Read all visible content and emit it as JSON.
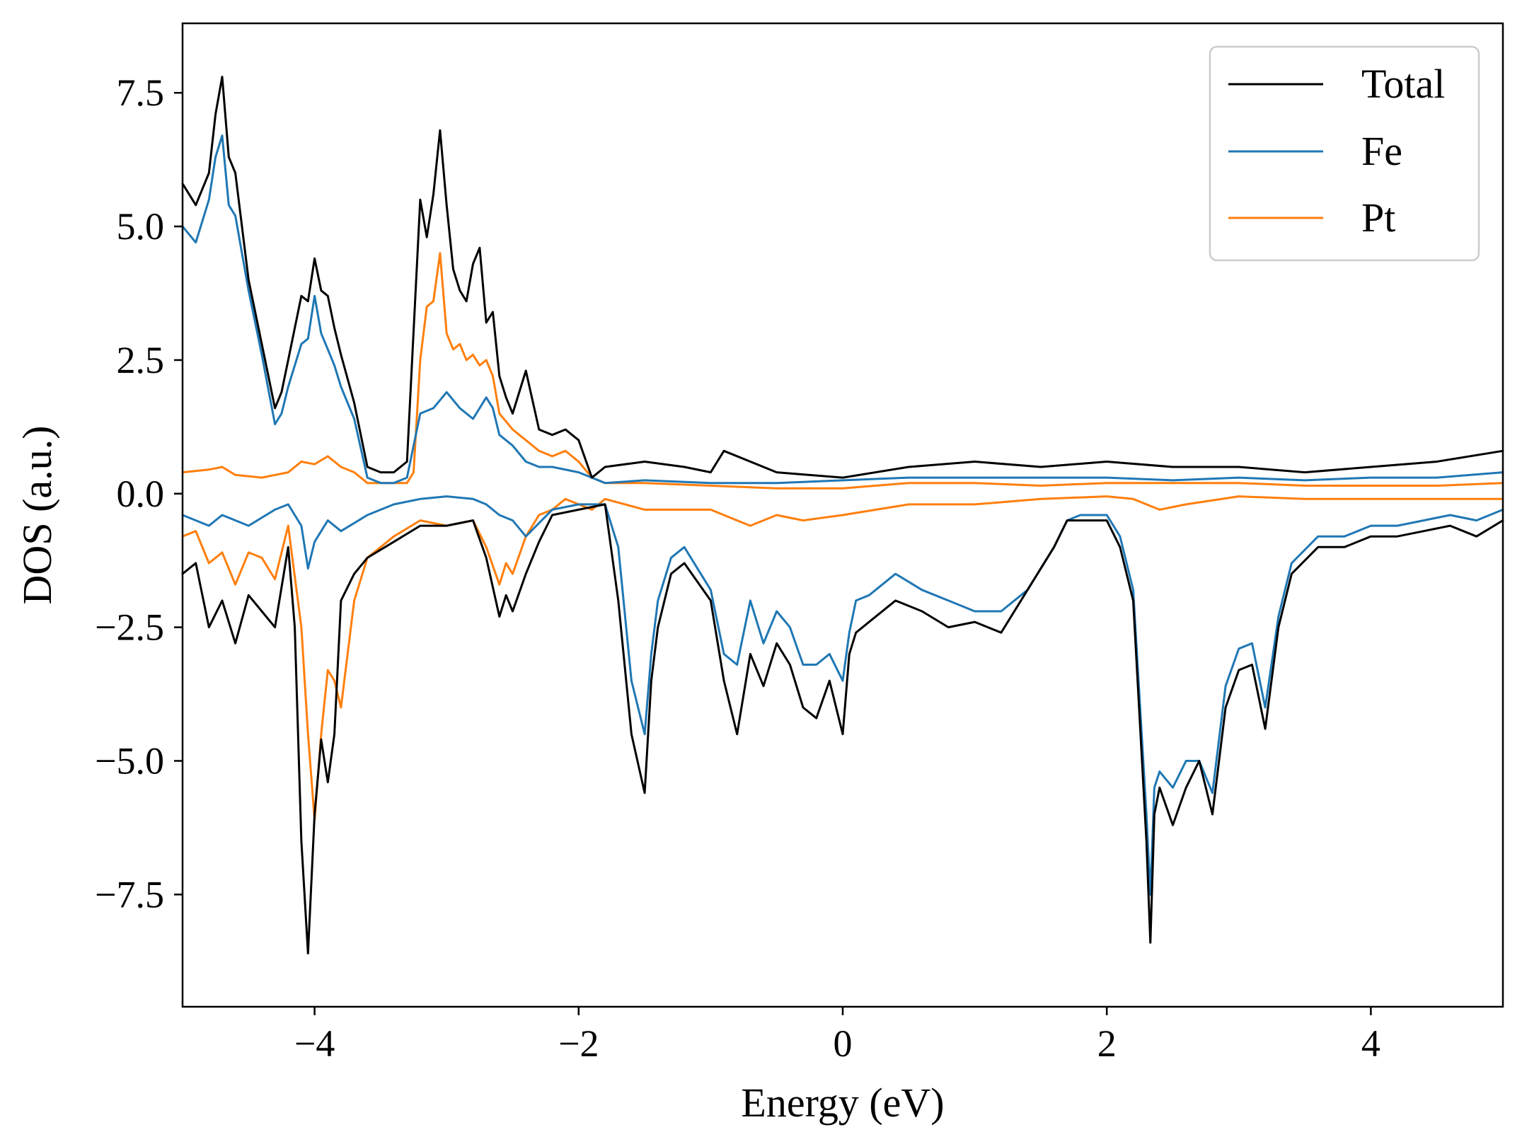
{
  "chart_data": {
    "type": "line",
    "title": "",
    "xlabel": "Energy (eV)",
    "ylabel": "DOS (a.u.)",
    "xlim": [
      -5,
      5
    ],
    "ylim": [
      -9.6,
      8.8
    ],
    "x_ticks": [
      -4,
      -2,
      0,
      2,
      4
    ],
    "x_tick_labels": [
      "−4",
      "−2",
      "0",
      "2",
      "4"
    ],
    "y_ticks": [
      7.5,
      5.0,
      2.5,
      0.0,
      -2.5,
      -5.0,
      -7.5
    ],
    "y_tick_labels": [
      "7.5",
      "5.0",
      "2.5",
      "0.0",
      "−2.5",
      "−5.0",
      "−7.5"
    ],
    "grid": false,
    "legend_position": "top-right",
    "series": [
      {
        "name": "Total",
        "color": "#000000",
        "up": {
          "x": [
            -5.0,
            -4.9,
            -4.8,
            -4.75,
            -4.7,
            -4.65,
            -4.6,
            -4.5,
            -4.4,
            -4.3,
            -4.25,
            -4.2,
            -4.1,
            -4.05,
            -4.0,
            -3.95,
            -3.9,
            -3.85,
            -3.8,
            -3.7,
            -3.6,
            -3.5,
            -3.4,
            -3.3,
            -3.2,
            -3.15,
            -3.1,
            -3.05,
            -3.0,
            -2.95,
            -2.9,
            -2.85,
            -2.8,
            -2.75,
            -2.7,
            -2.65,
            -2.6,
            -2.55,
            -2.5,
            -2.4,
            -2.3,
            -2.2,
            -2.1,
            -2.0,
            -1.9,
            -1.8,
            -1.5,
            -1.2,
            -1.0,
            -0.9,
            -0.5,
            0.0,
            0.5,
            1.0,
            1.5,
            2.0,
            2.5,
            3.0,
            3.5,
            4.0,
            4.5,
            5.0
          ],
          "y": [
            5.8,
            5.4,
            6.0,
            7.1,
            7.8,
            6.3,
            6.0,
            4.0,
            2.8,
            1.6,
            1.9,
            2.5,
            3.7,
            3.6,
            4.4,
            3.8,
            3.7,
            3.1,
            2.6,
            1.7,
            0.5,
            0.4,
            0.4,
            0.6,
            5.5,
            4.8,
            5.6,
            6.8,
            5.4,
            4.2,
            3.8,
            3.6,
            4.3,
            4.6,
            3.2,
            3.4,
            2.2,
            1.8,
            1.5,
            2.3,
            1.2,
            1.1,
            1.2,
            1.0,
            0.3,
            0.5,
            0.6,
            0.5,
            0.4,
            0.8,
            0.4,
            0.3,
            0.5,
            0.6,
            0.5,
            0.6,
            0.5,
            0.5,
            0.4,
            0.5,
            0.6,
            0.8
          ]
        },
        "down": {
          "x": [
            -5.0,
            -4.9,
            -4.8,
            -4.7,
            -4.6,
            -4.5,
            -4.4,
            -4.3,
            -4.2,
            -4.15,
            -4.1,
            -4.05,
            -4.0,
            -3.95,
            -3.9,
            -3.85,
            -3.8,
            -3.7,
            -3.6,
            -3.4,
            -3.2,
            -3.0,
            -2.8,
            -2.7,
            -2.6,
            -2.55,
            -2.5,
            -2.4,
            -2.3,
            -2.2,
            -2.0,
            -1.8,
            -1.7,
            -1.6,
            -1.5,
            -1.45,
            -1.4,
            -1.3,
            -1.2,
            -1.0,
            -0.9,
            -0.8,
            -0.7,
            -0.6,
            -0.5,
            -0.4,
            -0.3,
            -0.2,
            -0.1,
            0.0,
            0.05,
            0.1,
            0.2,
            0.4,
            0.6,
            0.8,
            1.0,
            1.2,
            1.4,
            1.6,
            1.7,
            1.8,
            2.0,
            2.1,
            2.2,
            2.3,
            2.33,
            2.36,
            2.4,
            2.5,
            2.6,
            2.7,
            2.8,
            2.9,
            3.0,
            3.1,
            3.2,
            3.3,
            3.4,
            3.6,
            3.8,
            4.0,
            4.2,
            4.4,
            4.6,
            4.8,
            5.0
          ],
          "y": [
            -1.5,
            -1.3,
            -2.5,
            -2.0,
            -2.8,
            -1.9,
            -2.2,
            -2.5,
            -1.0,
            -2.5,
            -6.5,
            -8.6,
            -6.0,
            -4.6,
            -5.4,
            -4.5,
            -2.0,
            -1.5,
            -1.2,
            -0.9,
            -0.6,
            -0.6,
            -0.5,
            -1.2,
            -2.3,
            -1.9,
            -2.2,
            -1.5,
            -0.9,
            -0.4,
            -0.3,
            -0.2,
            -2.0,
            -4.5,
            -5.6,
            -3.5,
            -2.5,
            -1.5,
            -1.3,
            -2.0,
            -3.5,
            -4.5,
            -3.0,
            -3.6,
            -2.8,
            -3.2,
            -4.0,
            -4.2,
            -3.5,
            -4.5,
            -3.0,
            -2.6,
            -2.4,
            -2.0,
            -2.2,
            -2.5,
            -2.4,
            -2.6,
            -1.8,
            -1.0,
            -0.5,
            -0.5,
            -0.5,
            -1.0,
            -2.0,
            -6.5,
            -8.4,
            -6.0,
            -5.5,
            -6.2,
            -5.5,
            -5.0,
            -6.0,
            -4.0,
            -3.3,
            -3.2,
            -4.4,
            -2.5,
            -1.5,
            -1.0,
            -1.0,
            -0.8,
            -0.8,
            -0.7,
            -0.6,
            -0.8,
            -0.5
          ]
        }
      },
      {
        "name": "Fe",
        "color": "#1f77b4",
        "up": {
          "x": [
            -5.0,
            -4.9,
            -4.8,
            -4.75,
            -4.7,
            -4.65,
            -4.6,
            -4.5,
            -4.4,
            -4.3,
            -4.25,
            -4.2,
            -4.1,
            -4.05,
            -4.0,
            -3.95,
            -3.9,
            -3.85,
            -3.8,
            -3.7,
            -3.6,
            -3.5,
            -3.4,
            -3.3,
            -3.2,
            -3.1,
            -3.0,
            -2.9,
            -2.8,
            -2.7,
            -2.65,
            -2.6,
            -2.5,
            -2.4,
            -2.3,
            -2.2,
            -2.0,
            -1.8,
            -1.5,
            -1.0,
            -0.5,
            0.0,
            0.5,
            1.0,
            1.5,
            2.0,
            2.5,
            3.0,
            3.5,
            4.0,
            4.5,
            5.0
          ],
          "y": [
            5.0,
            4.7,
            5.5,
            6.3,
            6.7,
            5.4,
            5.2,
            3.8,
            2.6,
            1.3,
            1.5,
            2.0,
            2.8,
            2.9,
            3.7,
            3.0,
            2.7,
            2.4,
            2.0,
            1.4,
            0.3,
            0.2,
            0.2,
            0.3,
            1.5,
            1.6,
            1.9,
            1.6,
            1.4,
            1.8,
            1.6,
            1.1,
            0.9,
            0.6,
            0.5,
            0.5,
            0.4,
            0.2,
            0.25,
            0.2,
            0.2,
            0.25,
            0.3,
            0.3,
            0.3,
            0.3,
            0.25,
            0.3,
            0.25,
            0.3,
            0.3,
            0.4
          ]
        },
        "down": {
          "x": [
            -5.0,
            -4.8,
            -4.7,
            -4.5,
            -4.3,
            -4.2,
            -4.1,
            -4.05,
            -4.0,
            -3.9,
            -3.8,
            -3.6,
            -3.4,
            -3.2,
            -3.0,
            -2.8,
            -2.7,
            -2.6,
            -2.5,
            -2.4,
            -2.2,
            -2.0,
            -1.8,
            -1.7,
            -1.6,
            -1.5,
            -1.45,
            -1.4,
            -1.3,
            -1.2,
            -1.0,
            -0.9,
            -0.8,
            -0.7,
            -0.6,
            -0.5,
            -0.4,
            -0.3,
            -0.2,
            -0.1,
            0.0,
            0.05,
            0.1,
            0.2,
            0.4,
            0.6,
            0.8,
            1.0,
            1.2,
            1.4,
            1.6,
            1.7,
            1.8,
            2.0,
            2.1,
            2.2,
            2.3,
            2.33,
            2.36,
            2.4,
            2.5,
            2.6,
            2.7,
            2.8,
            2.9,
            3.0,
            3.1,
            3.2,
            3.3,
            3.4,
            3.6,
            3.8,
            4.0,
            4.2,
            4.4,
            4.6,
            4.8,
            5.0
          ],
          "y": [
            -0.4,
            -0.6,
            -0.4,
            -0.6,
            -0.3,
            -0.2,
            -0.6,
            -1.4,
            -0.9,
            -0.5,
            -0.7,
            -0.4,
            -0.2,
            -0.1,
            -0.05,
            -0.1,
            -0.2,
            -0.4,
            -0.5,
            -0.8,
            -0.3,
            -0.2,
            -0.2,
            -1.0,
            -3.5,
            -4.5,
            -3.0,
            -2.0,
            -1.2,
            -1.0,
            -1.8,
            -3.0,
            -3.2,
            -2.0,
            -2.8,
            -2.2,
            -2.5,
            -3.2,
            -3.2,
            -3.0,
            -3.5,
            -2.6,
            -2.0,
            -1.9,
            -1.5,
            -1.8,
            -2.0,
            -2.2,
            -2.2,
            -1.8,
            -1.0,
            -0.5,
            -0.4,
            -0.4,
            -0.8,
            -1.8,
            -6.0,
            -7.5,
            -5.5,
            -5.2,
            -5.5,
            -5.0,
            -5.0,
            -5.6,
            -3.6,
            -2.9,
            -2.8,
            -4.0,
            -2.3,
            -1.3,
            -0.8,
            -0.8,
            -0.6,
            -0.6,
            -0.5,
            -0.4,
            -0.5,
            -0.3
          ]
        }
      },
      {
        "name": "Pt",
        "color": "#ff7f0e",
        "up": {
          "x": [
            -5.0,
            -4.8,
            -4.7,
            -4.6,
            -4.4,
            -4.2,
            -4.1,
            -4.0,
            -3.9,
            -3.8,
            -3.7,
            -3.6,
            -3.5,
            -3.4,
            -3.3,
            -3.25,
            -3.2,
            -3.15,
            -3.1,
            -3.05,
            -3.0,
            -2.95,
            -2.9,
            -2.85,
            -2.8,
            -2.75,
            -2.7,
            -2.65,
            -2.6,
            -2.5,
            -2.4,
            -2.3,
            -2.2,
            -2.1,
            -2.0,
            -1.9,
            -1.8,
            -1.5,
            -1.0,
            -0.5,
            0.0,
            0.5,
            1.0,
            1.5,
            2.0,
            2.5,
            3.0,
            3.5,
            4.0,
            4.5,
            5.0
          ],
          "y": [
            0.4,
            0.45,
            0.5,
            0.35,
            0.3,
            0.4,
            0.6,
            0.55,
            0.7,
            0.5,
            0.4,
            0.2,
            0.2,
            0.2,
            0.2,
            0.4,
            2.5,
            3.5,
            3.6,
            4.5,
            3.0,
            2.7,
            2.8,
            2.5,
            2.6,
            2.4,
            2.5,
            2.2,
            1.5,
            1.2,
            1.0,
            0.8,
            0.7,
            0.8,
            0.6,
            0.3,
            0.2,
            0.2,
            0.15,
            0.1,
            0.1,
            0.2,
            0.2,
            0.15,
            0.2,
            0.2,
            0.2,
            0.15,
            0.15,
            0.15,
            0.2
          ]
        },
        "down": {
          "x": [
            -5.0,
            -4.9,
            -4.8,
            -4.7,
            -4.6,
            -4.5,
            -4.4,
            -4.3,
            -4.2,
            -4.1,
            -4.05,
            -4.0,
            -3.95,
            -3.9,
            -3.85,
            -3.8,
            -3.7,
            -3.6,
            -3.4,
            -3.2,
            -3.0,
            -2.8,
            -2.7,
            -2.6,
            -2.55,
            -2.5,
            -2.4,
            -2.3,
            -2.2,
            -2.1,
            -2.0,
            -1.9,
            -1.8,
            -1.5,
            -1.0,
            -0.8,
            -0.7,
            -0.5,
            -0.3,
            0.0,
            0.5,
            1.0,
            1.5,
            2.0,
            2.2,
            2.4,
            2.6,
            3.0,
            3.5,
            4.0,
            4.5,
            5.0
          ],
          "y": [
            -0.8,
            -0.7,
            -1.3,
            -1.1,
            -1.7,
            -1.1,
            -1.2,
            -1.6,
            -0.6,
            -2.5,
            -4.5,
            -6.1,
            -4.5,
            -3.3,
            -3.5,
            -4.0,
            -2.0,
            -1.2,
            -0.8,
            -0.5,
            -0.6,
            -0.5,
            -1.0,
            -1.7,
            -1.3,
            -1.5,
            -0.8,
            -0.4,
            -0.3,
            -0.1,
            -0.2,
            -0.3,
            -0.1,
            -0.3,
            -0.3,
            -0.5,
            -0.6,
            -0.4,
            -0.5,
            -0.4,
            -0.2,
            -0.2,
            -0.1,
            -0.05,
            -0.1,
            -0.3,
            -0.2,
            -0.05,
            -0.1,
            -0.1,
            -0.1,
            -0.1
          ]
        }
      }
    ]
  }
}
